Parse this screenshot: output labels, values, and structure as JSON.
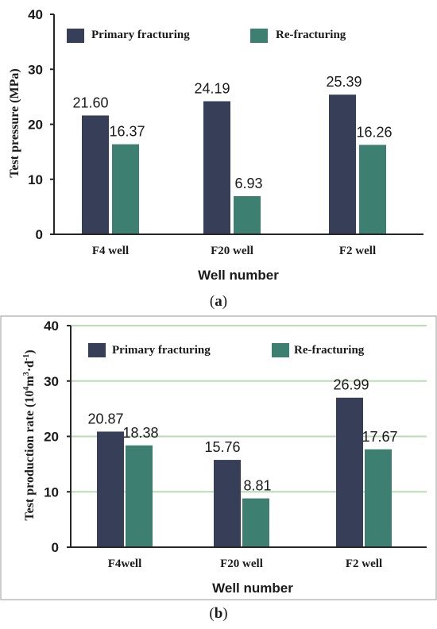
{
  "colors": {
    "primary": "#373f58",
    "refrac": "#3d7f70",
    "grid": "#b9dcb4",
    "axis": "#262626"
  },
  "chart_data": [
    {
      "type": "bar",
      "caption": "a",
      "categories": [
        "F4 well",
        "F20 well",
        "F2 well"
      ],
      "series": [
        {
          "name": "Primary fracturing",
          "values": [
            21.6,
            24.19,
            25.39
          ],
          "labels": [
            "21.60",
            "24.19",
            "25.39"
          ]
        },
        {
          "name": "Re-fracturing",
          "values": [
            16.37,
            6.93,
            16.26
          ],
          "labels": [
            "16.37",
            "6.93",
            "16.26"
          ]
        }
      ],
      "xlabel": "Well number",
      "ylabel": "Test pressure (MPa)",
      "ylim": [
        0,
        40
      ],
      "yticks": [
        0,
        10,
        20,
        30,
        40
      ],
      "grid": false,
      "legend_position": "top"
    },
    {
      "type": "bar",
      "caption": "b",
      "categories": [
        "F4well",
        "F20 well",
        "F2 well"
      ],
      "series": [
        {
          "name": "Primary fracturing",
          "values": [
            20.87,
            15.76,
            26.99
          ],
          "labels": [
            "20.87",
            "15.76",
            "26.99"
          ]
        },
        {
          "name": "Re-fracturing",
          "values": [
            18.38,
            8.81,
            17.67
          ],
          "labels": [
            "18.38",
            "8.81",
            "17.67"
          ]
        }
      ],
      "xlabel": "Well number",
      "ylabel_main": "Test production rate (10",
      "ylabel_sup1": "4",
      "ylabel_mid": "m",
      "ylabel_sup2": "3",
      "ylabel_mid2": "·d",
      "ylabel_sup3": "-1",
      "ylabel_end": ")",
      "ylim": [
        0,
        40
      ],
      "yticks": [
        0,
        10,
        20,
        30,
        40
      ],
      "grid": true,
      "legend_position": "top"
    }
  ]
}
